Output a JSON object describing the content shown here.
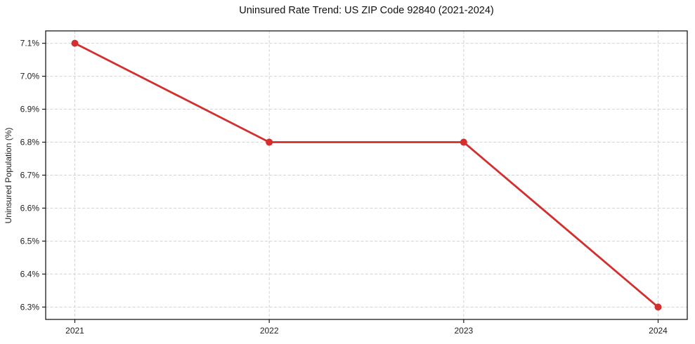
{
  "figure": {
    "background": "#ffffff"
  },
  "chart_data": {
    "type": "line",
    "title": "Uninsured Rate Trend: US ZIP Code 92840 (2021-2024)",
    "xlabel": "",
    "ylabel": "Uninsured Population (%)",
    "x": [
      2021,
      2022,
      2023,
      2024
    ],
    "x_tick_labels": [
      "2021",
      "2022",
      "2023",
      "2024"
    ],
    "series": [
      {
        "name": "uninsured-rate",
        "values": [
          7.1,
          6.8,
          6.8,
          6.3
        ],
        "color": "#d32f2f",
        "marker": "circle",
        "line_width": 2.8,
        "marker_radius": 5
      }
    ],
    "y_ticks": [
      6.3,
      6.4,
      6.5,
      6.6,
      6.7,
      6.8,
      6.9,
      7.0,
      7.1
    ],
    "y_tick_labels": [
      "6.3%",
      "6.4%",
      "6.5%",
      "6.6%",
      "6.7%",
      "6.8%",
      "6.9%",
      "7.0%",
      "7.1%"
    ],
    "ylim": [
      6.2625,
      7.1375
    ],
    "xlim": [
      2020.85,
      2024.15
    ],
    "grid": {
      "visible": true,
      "style": "dashed",
      "color": "#d4d4d4"
    },
    "axis_color": "#1a1a1a",
    "tick_label_color": "#222222",
    "legend": "none"
  }
}
